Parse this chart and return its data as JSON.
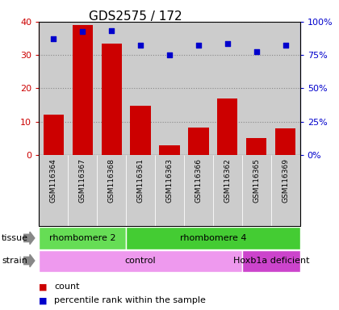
{
  "title": "GDS2575 / 172",
  "samples": [
    "GSM116364",
    "GSM116367",
    "GSM116368",
    "GSM116361",
    "GSM116363",
    "GSM116366",
    "GSM116362",
    "GSM116365",
    "GSM116369"
  ],
  "counts": [
    12.2,
    39.0,
    33.5,
    14.7,
    2.8,
    8.2,
    17.0,
    5.0,
    8.0
  ],
  "percentiles": [
    87.5,
    92.5,
    93.0,
    82.5,
    75.0,
    82.5,
    83.5,
    77.5,
    82.5
  ],
  "bar_color": "#cc0000",
  "dot_color": "#0000cc",
  "left_ylim": [
    0,
    40
  ],
  "right_ylim": [
    0,
    100
  ],
  "left_yticks": [
    0,
    10,
    20,
    30,
    40
  ],
  "right_yticks": [
    0,
    25,
    50,
    75,
    100
  ],
  "right_yticklabels": [
    "0%",
    "25%",
    "50%",
    "75%",
    "100%"
  ],
  "tissue_groups": [
    {
      "label": "rhombomere 2",
      "start": 0,
      "end": 3,
      "color": "#66dd55"
    },
    {
      "label": "rhombomere 4",
      "start": 3,
      "end": 9,
      "color": "#44cc33"
    }
  ],
  "strain_groups": [
    {
      "label": "control",
      "start": 0,
      "end": 7,
      "color": "#ee99ee"
    },
    {
      "label": "Hoxb1a deficient",
      "start": 7,
      "end": 9,
      "color": "#cc44cc"
    }
  ],
  "legend_items": [
    {
      "label": "count",
      "color": "#cc0000"
    },
    {
      "label": "percentile rank within the sample",
      "color": "#0000cc"
    }
  ],
  "col_bg": "#cccccc",
  "plot_bg": "#ffffff",
  "grid_color": "#888888"
}
